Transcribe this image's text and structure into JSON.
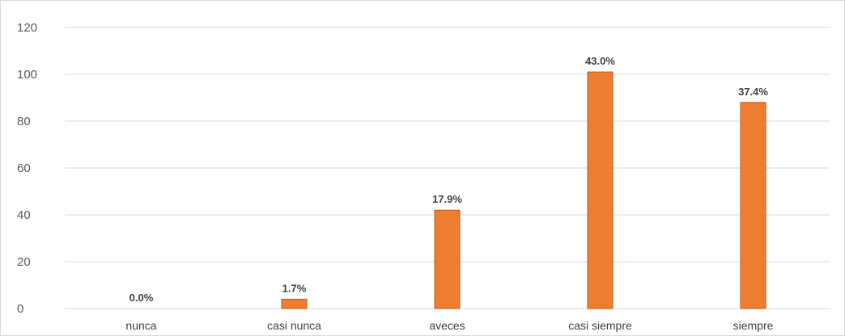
{
  "chart_data": {
    "type": "bar",
    "categories": [
      "nunca",
      "casi nunca",
      "aveces",
      "casi siempre",
      "siempre"
    ],
    "values": [
      0,
      4,
      42,
      101,
      88
    ],
    "data_labels": [
      "0.0%",
      "1.7%",
      "17.9%",
      "43.0%",
      "37.4%"
    ],
    "yticks": [
      "0",
      "20",
      "40",
      "60",
      "80",
      "100",
      "120"
    ],
    "ylim": [
      0,
      120
    ],
    "grid": true,
    "bar_color": "#ED7D31",
    "bar_border_color": "#C55A11",
    "title": "",
    "xlabel": "",
    "ylabel": ""
  }
}
